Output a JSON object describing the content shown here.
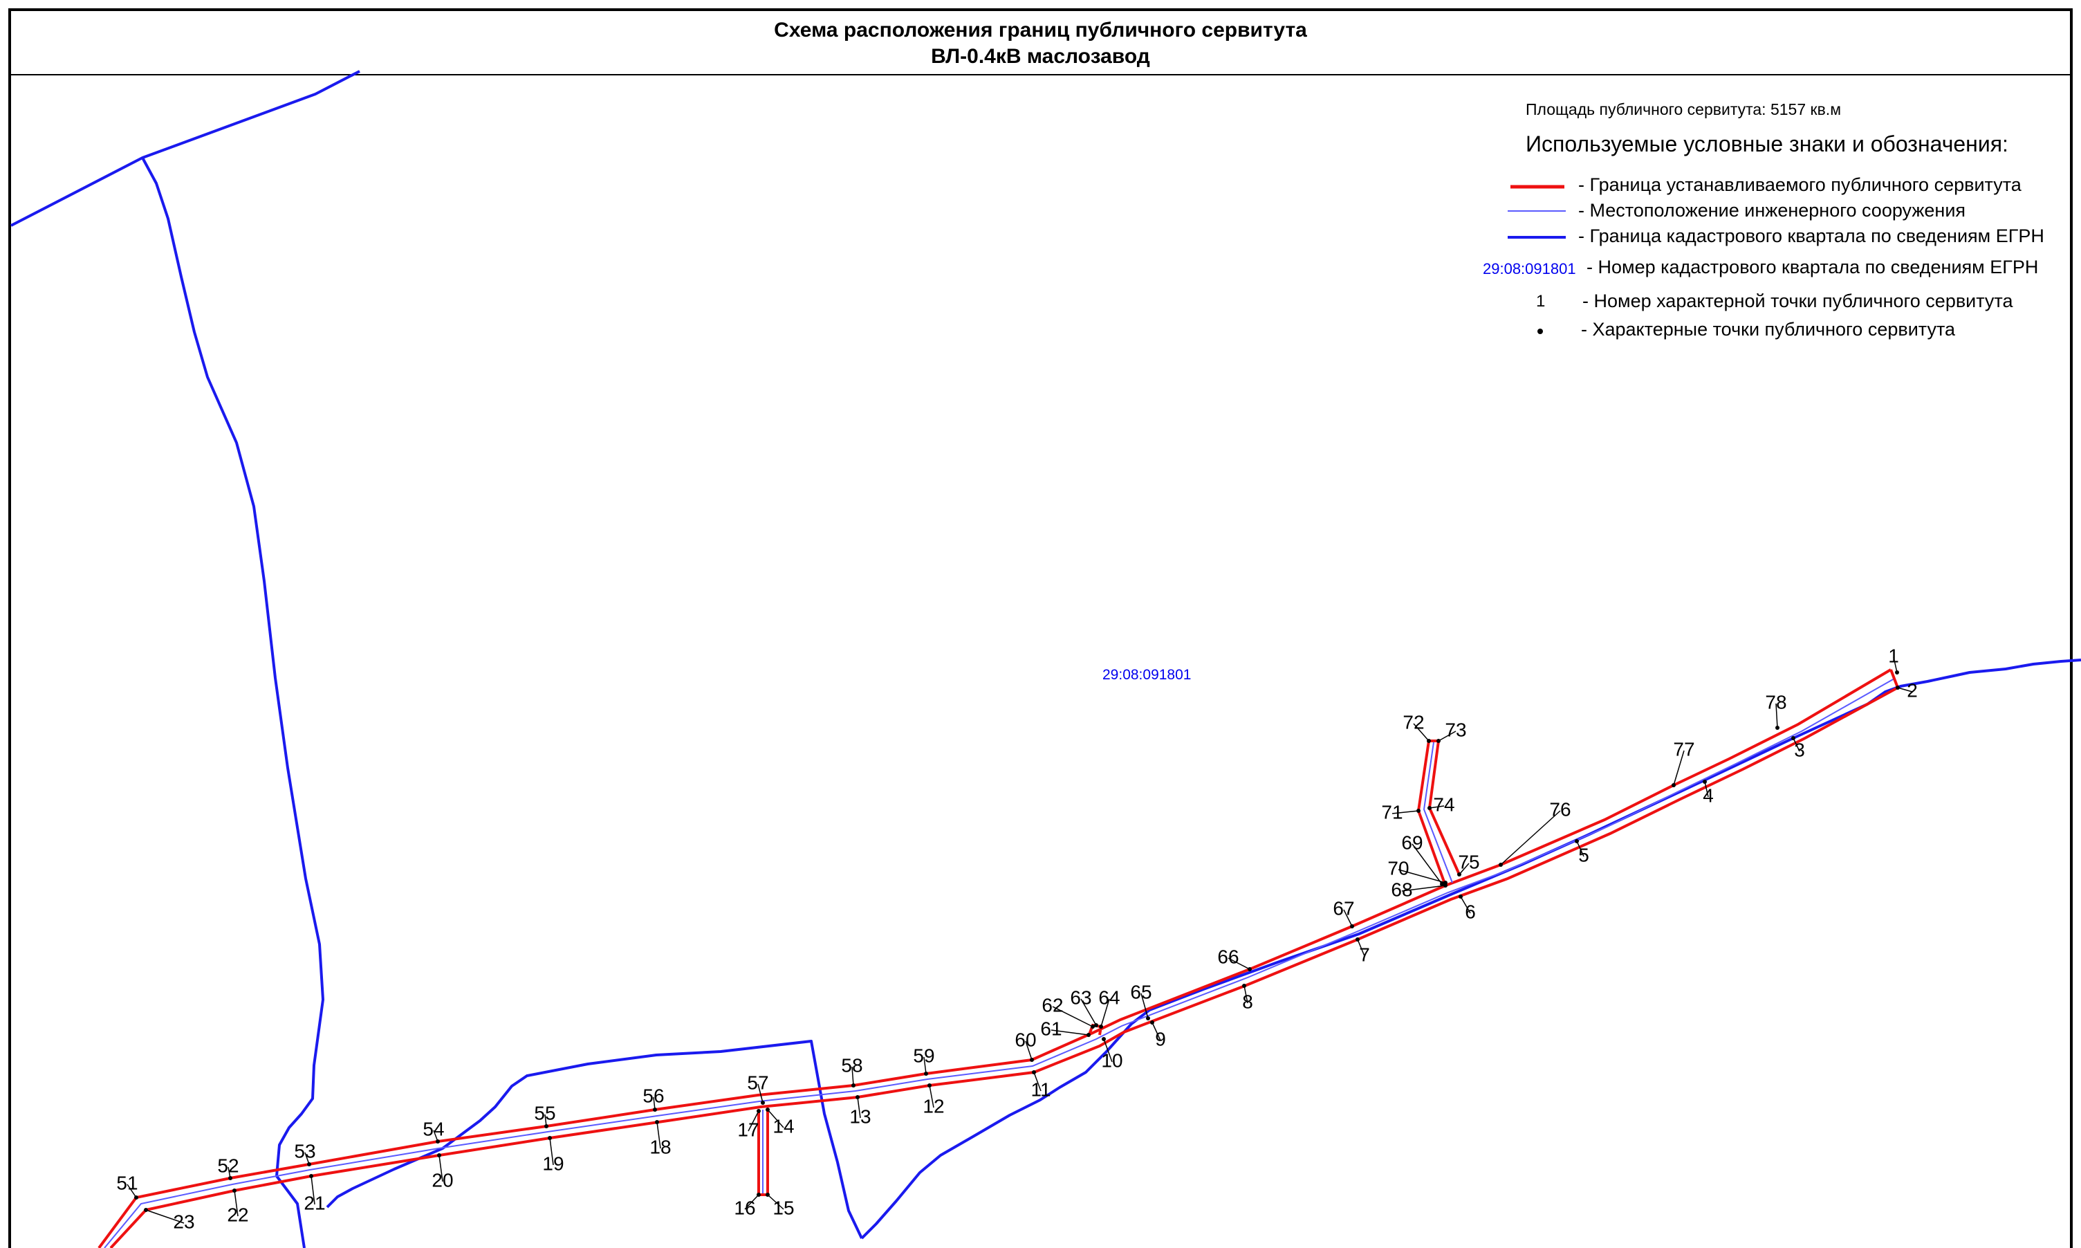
{
  "header": {
    "title_line1": "Схема расположения границ публичного сервитута",
    "title_line2": "ВЛ-0.4кВ маслозавод"
  },
  "legend": {
    "area": "Площадь публичного сервитута: 5157 кв.м",
    "heading": "Используемые условные знаки и обозначения:",
    "boundary_servitude": "- Граница устанавливаемого публичного сервитута",
    "engineering_structure": "- Местоположение инженерного сооружения",
    "cadastral_boundary": "- Граница кадастрового квартала по сведениям ЕГРН",
    "cadastral_code_sample": "29:08:091801",
    "cadastral_number": "- Номер кадастрового квартала по сведениям ЕГРН",
    "point_number_sample": "1",
    "point_number": "- Номер характерной точки публичного сервитута",
    "points": "- Характерные точки публичного сервитута"
  },
  "map": {
    "quarter_label": "29:08:091801",
    "colors": {
      "servitude": "#ee1111",
      "structure": "#5a5aff",
      "cadastral": "#1a1aee",
      "point": "#000000"
    },
    "point_labels": [
      "1",
      "2",
      "3",
      "4",
      "5",
      "6",
      "7",
      "8",
      "9",
      "10",
      "11",
      "12",
      "13",
      "14",
      "15",
      "16",
      "17",
      "18",
      "19",
      "20",
      "21",
      "22",
      "23",
      "51",
      "52",
      "53",
      "54",
      "55",
      "56",
      "57",
      "58",
      "59",
      "60",
      "61",
      "62",
      "63",
      "64",
      "65",
      "66",
      "67",
      "68",
      "69",
      "70",
      "71",
      "72",
      "73",
      "74",
      "75",
      "76",
      "77",
      "78"
    ]
  }
}
